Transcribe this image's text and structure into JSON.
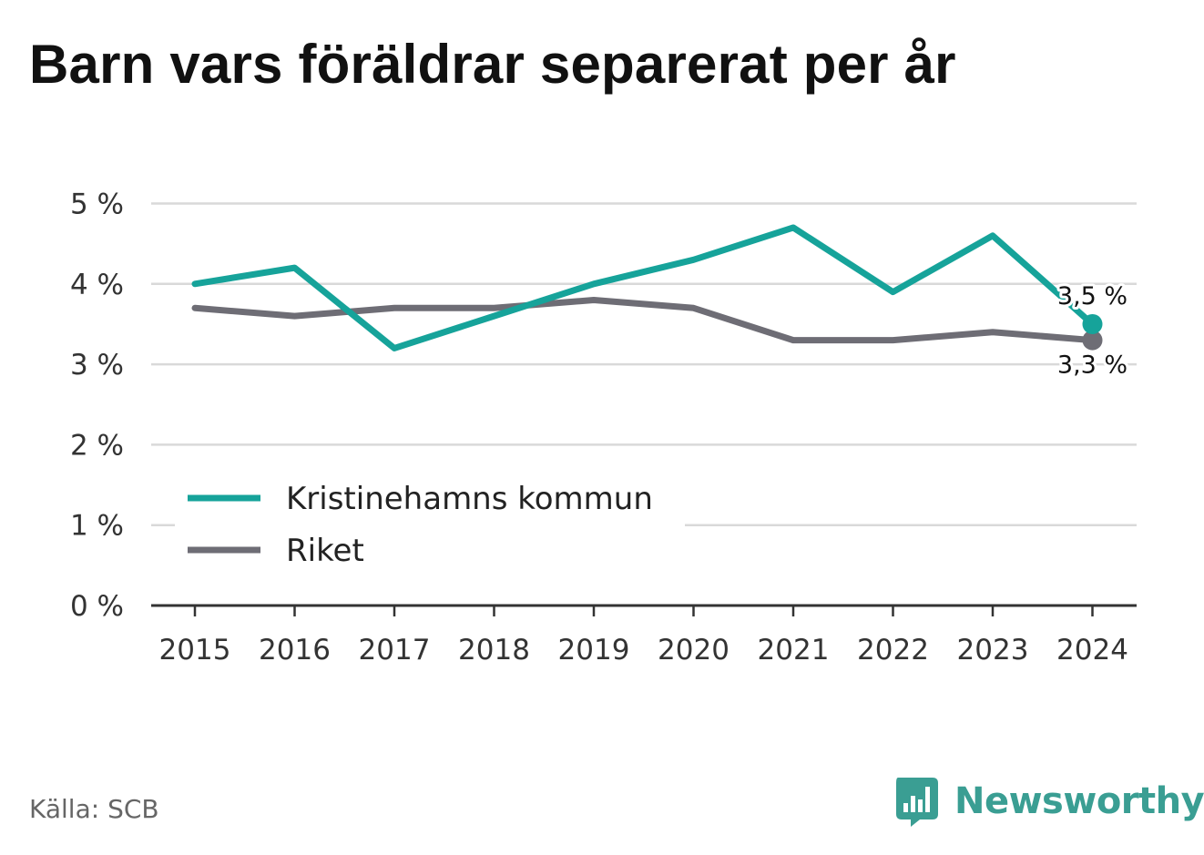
{
  "title": "Barn vars föräldrar separerat per år",
  "source": "Källa: SCB",
  "brand": "Newsworthy",
  "chart_data": {
    "type": "line",
    "title": "Barn vars föräldrar separerat per år",
    "xlabel": "",
    "ylabel": "",
    "categories": [
      "2015",
      "2016",
      "2017",
      "2018",
      "2019",
      "2020",
      "2021",
      "2022",
      "2023",
      "2024"
    ],
    "series": [
      {
        "name": "Kristinehamns kommun",
        "color": "#16a39a",
        "values": [
          4.0,
          4.2,
          3.2,
          3.6,
          4.0,
          4.3,
          4.7,
          3.9,
          4.6,
          3.5
        ],
        "end_label": "3,5 %"
      },
      {
        "name": "Riket",
        "color": "#6e6d75",
        "values": [
          3.7,
          3.6,
          3.7,
          3.7,
          3.8,
          3.7,
          3.3,
          3.3,
          3.4,
          3.3
        ],
        "end_label": "3,3 %"
      }
    ],
    "ylim": [
      0,
      5
    ],
    "yticks": [
      "0 %",
      "1 %",
      "2 %",
      "3 %",
      "4 %",
      "5 %"
    ],
    "grid": true,
    "legend": "bottom-left"
  }
}
